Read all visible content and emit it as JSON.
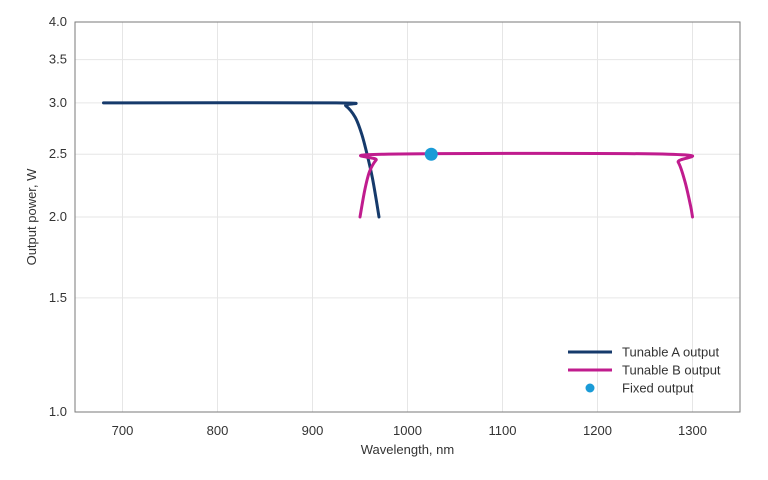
{
  "chart_data": {
    "type": "line",
    "xlabel": "Wavelength, nm",
    "ylabel": "Output power, W",
    "x_scale": "linear",
    "y_scale": "log",
    "xlim": [
      650,
      1350
    ],
    "ylim": [
      1.0,
      4.0
    ],
    "x_ticks": [
      700,
      800,
      900,
      1000,
      1100,
      1200,
      1300
    ],
    "y_ticks": [
      1.0,
      1.5,
      2.0,
      2.5,
      3.0,
      3.5,
      4.0
    ],
    "x_tick_labels": [
      "700",
      "800",
      "900",
      "1000",
      "1100",
      "1200",
      "1300"
    ],
    "y_tick_labels": [
      "1.0",
      "1.5",
      "2.0",
      "2.5",
      "3.0",
      "3.5",
      "4.0"
    ],
    "grid": true,
    "legend_position": "bottom-right",
    "series": [
      {
        "name": "Tunable A output",
        "kind": "line",
        "color": "#163a6b",
        "points": [
          [
            680,
            3.0
          ],
          [
            925,
            3.0
          ],
          [
            935,
            2.97
          ],
          [
            945,
            2.85
          ],
          [
            952,
            2.68
          ],
          [
            958,
            2.48
          ],
          [
            963,
            2.3
          ],
          [
            967,
            2.13
          ],
          [
            970,
            2.0
          ]
        ]
      },
      {
        "name": "Tunable B output",
        "kind": "line",
        "color": "#c01c8e",
        "points": [
          [
            950,
            2.0
          ],
          [
            955,
            2.2
          ],
          [
            960,
            2.35
          ],
          [
            967,
            2.45
          ],
          [
            975,
            2.5
          ],
          [
            1275,
            2.5
          ],
          [
            1285,
            2.43
          ],
          [
            1292,
            2.27
          ],
          [
            1298,
            2.08
          ],
          [
            1300,
            2.0
          ]
        ]
      },
      {
        "name": "Fixed output",
        "kind": "point",
        "color": "#1a9bd7",
        "points": [
          [
            1025,
            2.5
          ]
        ]
      }
    ]
  }
}
